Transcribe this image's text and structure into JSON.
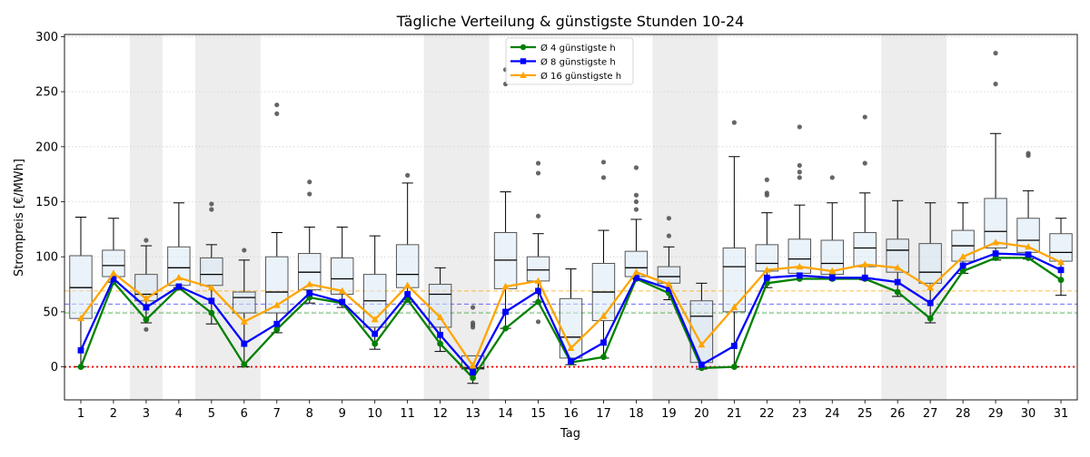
{
  "chart_data": {
    "type": "box",
    "title": "Tägliche Verteilung & günstigste Stunden 10-24",
    "xlabel": "Tag",
    "ylabel": "Strompreis [€/MWh]",
    "ylim": [
      -30,
      302
    ],
    "yticks": [
      0,
      50,
      100,
      150,
      200,
      250,
      300
    ],
    "grid": "y-dotted",
    "legend_position": "top-center",
    "categories": [
      "1",
      "2",
      "3",
      "4",
      "5",
      "6",
      "7",
      "8",
      "9",
      "10",
      "11",
      "12",
      "13",
      "14",
      "15",
      "16",
      "17",
      "18",
      "19",
      "20",
      "21",
      "22",
      "23",
      "24",
      "25",
      "26",
      "27",
      "28",
      "29",
      "30",
      "31"
    ],
    "shaded_days": [
      3,
      5,
      6,
      12,
      13,
      19,
      20,
      26,
      27
    ],
    "reference_lines": [
      {
        "value": 0,
        "color": "#ff0000",
        "style": "dotted"
      },
      {
        "value": 49,
        "color": "#2ca02c",
        "style": "dashed"
      },
      {
        "value": 57,
        "color": "#3a3aff",
        "style": "dashed"
      },
      {
        "value": 69,
        "color": "#ffa500",
        "style": "dashed"
      }
    ],
    "boxes": [
      {
        "whislo": 0,
        "q1": 44,
        "med": 72,
        "q3": 101,
        "whishi": 136,
        "fliers": []
      },
      {
        "whislo": 77,
        "q1": 82,
        "med": 92,
        "q3": 106,
        "whishi": 135,
        "fliers": []
      },
      {
        "whislo": 40,
        "q1": 60,
        "med": 66,
        "q3": 84,
        "whishi": 110,
        "fliers": [
          34,
          115
        ]
      },
      {
        "whislo": 72,
        "q1": 74,
        "med": 90,
        "q3": 109,
        "whishi": 149,
        "fliers": []
      },
      {
        "whislo": 39,
        "q1": 74,
        "med": 84,
        "q3": 99,
        "whishi": 111,
        "fliers": [
          143,
          148
        ]
      },
      {
        "whislo": 0,
        "q1": 49,
        "med": 63,
        "q3": 68,
        "whishi": 97,
        "fliers": [
          106
        ]
      },
      {
        "whislo": 31,
        "q1": 49,
        "med": 68,
        "q3": 100,
        "whishi": 122,
        "fliers": [
          230,
          238
        ]
      },
      {
        "whislo": 58,
        "q1": 70,
        "med": 86,
        "q3": 103,
        "whishi": 127,
        "fliers": [
          157,
          168
        ]
      },
      {
        "whislo": 54,
        "q1": 66,
        "med": 80,
        "q3": 99,
        "whishi": 127,
        "fliers": []
      },
      {
        "whislo": 16,
        "q1": 36,
        "med": 60,
        "q3": 84,
        "whishi": 119,
        "fliers": []
      },
      {
        "whislo": 59,
        "q1": 72,
        "med": 84,
        "q3": 111,
        "whishi": 167,
        "fliers": [
          174
        ]
      },
      {
        "whislo": 14,
        "q1": 36,
        "med": 66,
        "q3": 75,
        "whishi": 90,
        "fliers": []
      },
      {
        "whislo": -15,
        "q1": -2,
        "med": -1,
        "q3": 10,
        "whishi": 10,
        "fliers": [
          36,
          38,
          40,
          54
        ]
      },
      {
        "whislo": 35,
        "q1": 71,
        "med": 97,
        "q3": 122,
        "whishi": 159,
        "fliers": [
          257,
          270
        ]
      },
      {
        "whislo": 59,
        "q1": 78,
        "med": 88,
        "q3": 100,
        "whishi": 121,
        "fliers": [
          41,
          137,
          176,
          185
        ]
      },
      {
        "whislo": 2,
        "q1": 8,
        "med": 27,
        "q3": 62,
        "whishi": 89,
        "fliers": []
      },
      {
        "whislo": 8,
        "q1": 42,
        "med": 68,
        "q3": 94,
        "whishi": 124,
        "fliers": [
          172,
          186
        ]
      },
      {
        "whislo": 80,
        "q1": 82,
        "med": 90,
        "q3": 105,
        "whishi": 134,
        "fliers": [
          143,
          150,
          156,
          181
        ]
      },
      {
        "whislo": 61,
        "q1": 76,
        "med": 82,
        "q3": 91,
        "whishi": 109,
        "fliers": [
          119,
          135
        ]
      },
      {
        "whislo": -2,
        "q1": 4,
        "med": 46,
        "q3": 60,
        "whishi": 76,
        "fliers": []
      },
      {
        "whislo": 0,
        "q1": 50,
        "med": 91,
        "q3": 108,
        "whishi": 191,
        "fliers": [
          222
        ]
      },
      {
        "whislo": 72,
        "q1": 87,
        "med": 94,
        "q3": 111,
        "whishi": 140,
        "fliers": [
          156,
          158,
          170
        ]
      },
      {
        "whislo": 80,
        "q1": 85,
        "med": 98,
        "q3": 116,
        "whishi": 147,
        "fliers": [
          172,
          177,
          183,
          218
        ]
      },
      {
        "whislo": 80,
        "q1": 84,
        "med": 94,
        "q3": 115,
        "whishi": 149,
        "fliers": [
          172
        ]
      },
      {
        "whislo": 79,
        "q1": 91,
        "med": 108,
        "q3": 122,
        "whishi": 158,
        "fliers": [
          185,
          227
        ]
      },
      {
        "whislo": 64,
        "q1": 86,
        "med": 106,
        "q3": 116,
        "whishi": 151,
        "fliers": []
      },
      {
        "whislo": 40,
        "q1": 76,
        "med": 86,
        "q3": 112,
        "whishi": 149,
        "fliers": []
      },
      {
        "whislo": 85,
        "q1": 96,
        "med": 110,
        "q3": 124,
        "whishi": 149,
        "fliers": []
      },
      {
        "whislo": 97,
        "q1": 108,
        "med": 123,
        "q3": 153,
        "whishi": 212,
        "fliers": [
          257,
          285
        ]
      },
      {
        "whislo": 98,
        "q1": 104,
        "med": 115,
        "q3": 135,
        "whishi": 160,
        "fliers": [
          192,
          194
        ]
      },
      {
        "whislo": 65,
        "q1": 96,
        "med": 104,
        "q3": 121,
        "whishi": 135,
        "fliers": []
      }
    ],
    "series": [
      {
        "name": "Ø 4 günstigste h",
        "color": "#008000",
        "marker": "circle",
        "values": [
          0,
          77,
          43,
          72,
          49,
          2,
          34,
          63,
          58,
          21,
          61,
          21,
          -10,
          35,
          59,
          4,
          9,
          80,
          67,
          -1,
          0,
          76,
          80,
          80,
          80,
          68,
          44,
          87,
          99,
          99,
          79
        ]
      },
      {
        "name": "Ø 8 günstigste h",
        "color": "#0000ff",
        "marker": "square",
        "values": [
          15,
          80,
          54,
          73,
          60,
          21,
          39,
          67,
          59,
          30,
          66,
          29,
          -5,
          50,
          69,
          5,
          22,
          81,
          71,
          2,
          19,
          81,
          83,
          81,
          81,
          77,
          58,
          92,
          103,
          102,
          88
        ]
      },
      {
        "name": "Ø 16 günstigste h",
        "color": "#ffa500",
        "marker": "triangle",
        "values": [
          44,
          85,
          62,
          81,
          72,
          41,
          56,
          75,
          69,
          43,
          74,
          45,
          1,
          73,
          78,
          17,
          46,
          86,
          75,
          20,
          54,
          88,
          91,
          87,
          93,
          90,
          72,
          100,
          113,
          109,
          95
        ]
      }
    ]
  }
}
